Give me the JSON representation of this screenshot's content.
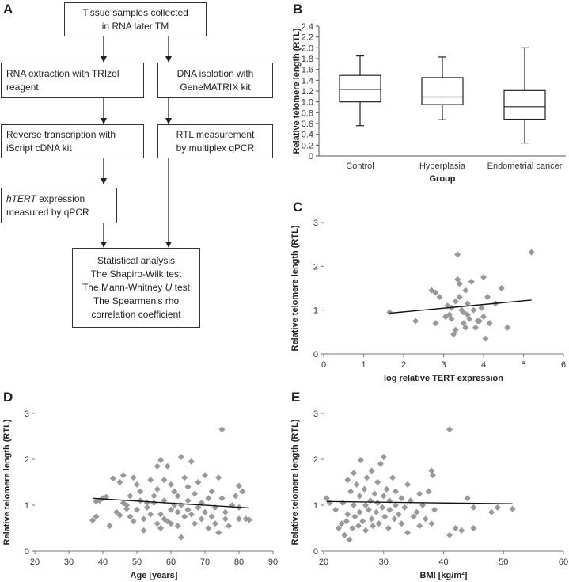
{
  "panel_letters": {
    "a": "A",
    "b": "B",
    "c": "C",
    "d": "D",
    "e": "E"
  },
  "flowchart": {
    "tissue": [
      "Tissue samples collected",
      "in RNA later TM"
    ],
    "rna_extraction": [
      "RNA extraction with TRIzol",
      "reagent"
    ],
    "dna_isolation": [
      "DNA isolation with",
      "GeneMATRIX kit"
    ],
    "reverse_transcription": [
      "Reverse transcription with",
      "iScript cDNA kit"
    ],
    "rtl_measurement": [
      "RTL measurement",
      "by multiplex qPCR"
    ],
    "htert_italic": "hTERT",
    "htert_rest": " expression",
    "htert_line2": "measured by qPCR",
    "stats": {
      "line1": "Statistical analysis",
      "line2": "The Shapiro-Wilk test",
      "line3_pre": "The Mann-Whitney ",
      "line3_italic": "U",
      "line3_post": " test",
      "line4": "The Spearmen's rho",
      "line5": "correlation coefficient"
    },
    "arrow_color": "#222222"
  },
  "chart_data": [
    {
      "id": "B",
      "type": "box",
      "categories": [
        "Control",
        "Hyperplasia",
        "Endometrial cancer"
      ],
      "boxes": [
        {
          "min": 0.56,
          "q1": 1.0,
          "median": 1.23,
          "q3": 1.49,
          "max": 1.85
        },
        {
          "min": 0.67,
          "q1": 0.95,
          "median": 1.09,
          "q3": 1.45,
          "max": 1.83
        },
        {
          "min": 0.24,
          "q1": 0.68,
          "median": 0.91,
          "q3": 1.21,
          "max": 2.0
        }
      ],
      "ylabel": "Relative telomere length (RTL)",
      "xlabel": "Group",
      "ylim": [
        0,
        2.4
      ],
      "yticks": [
        "0",
        "0.2",
        "0.4",
        "0.6",
        "0.8",
        "1.0",
        "1.2",
        "1.4",
        "1.6",
        "1.8",
        "2.0",
        "2.2",
        "2.4"
      ]
    },
    {
      "id": "C",
      "type": "scatter",
      "xlabel": "log relative TERT expression",
      "ylabel": "Relative telomere length (RTL)",
      "xlim": [
        0,
        6
      ],
      "ylim": [
        0,
        3
      ],
      "xticks": [
        "0",
        "1",
        "2",
        "3",
        "4",
        "5",
        "6"
      ],
      "yticks": [
        "0",
        "1",
        "2",
        "3"
      ],
      "marker_color": "#999999",
      "points": [
        [
          1.65,
          0.95
        ],
        [
          2.3,
          0.75
        ],
        [
          2.7,
          1.45
        ],
        [
          2.8,
          1.4
        ],
        [
          2.8,
          0.7
        ],
        [
          2.9,
          1.3
        ],
        [
          3.05,
          0.85
        ],
        [
          3.1,
          1.1
        ],
        [
          3.15,
          0.9
        ],
        [
          3.2,
          1.05
        ],
        [
          3.2,
          0.8
        ],
        [
          3.25,
          0.45
        ],
        [
          3.3,
          1.2
        ],
        [
          3.3,
          0.55
        ],
        [
          3.35,
          2.27
        ],
        [
          3.35,
          1.7
        ],
        [
          3.4,
          1.6
        ],
        [
          3.4,
          1.3
        ],
        [
          3.45,
          1.0
        ],
        [
          3.5,
          0.95
        ],
        [
          3.5,
          0.7
        ],
        [
          3.55,
          1.45
        ],
        [
          3.55,
          0.6
        ],
        [
          3.6,
          1.15
        ],
        [
          3.6,
          0.9
        ],
        [
          3.65,
          0.8
        ],
        [
          3.7,
          1.65
        ],
        [
          3.75,
          1.0
        ],
        [
          3.8,
          0.6
        ],
        [
          3.85,
          0.75
        ],
        [
          3.9,
          0.75
        ],
        [
          3.95,
          1.05
        ],
        [
          4.0,
          1.75
        ],
        [
          4.0,
          0.85
        ],
        [
          4.05,
          0.35
        ],
        [
          4.1,
          1.3
        ],
        [
          4.15,
          0.7
        ],
        [
          4.3,
          1.15
        ],
        [
          4.45,
          1.5
        ],
        [
          4.6,
          0.6
        ],
        [
          5.2,
          2.32
        ]
      ],
      "trend": {
        "x": [
          1.65,
          5.2
        ],
        "y": [
          0.93,
          1.23
        ]
      }
    },
    {
      "id": "D",
      "type": "scatter",
      "xlabel": "Age [years]",
      "ylabel": "Relative telomere length (RTL)",
      "xlim": [
        20,
        90
      ],
      "ylim": [
        0,
        3
      ],
      "xticks": [
        "20",
        "30",
        "40",
        "50",
        "60",
        "70",
        "80",
        "90"
      ],
      "yticks": [
        "0",
        "1",
        "2",
        "3"
      ],
      "marker_color": "#999999",
      "points": [
        [
          37,
          0.67
        ],
        [
          38,
          0.75
        ],
        [
          38,
          1.08
        ],
        [
          39,
          1.1
        ],
        [
          40,
          1.15
        ],
        [
          41,
          1.18
        ],
        [
          42,
          0.55
        ],
        [
          43,
          1.58
        ],
        [
          44,
          0.85
        ],
        [
          45,
          1.5
        ],
        [
          45,
          0.78
        ],
        [
          46,
          1.05
        ],
        [
          46,
          1.65
        ],
        [
          47,
          1.0
        ],
        [
          47,
          0.92
        ],
        [
          48,
          0.75
        ],
        [
          48,
          1.2
        ],
        [
          49,
          1.6
        ],
        [
          49,
          0.65
        ],
        [
          50,
          0.9
        ],
        [
          50,
          1.45
        ],
        [
          51,
          1.3
        ],
        [
          51,
          1.1
        ],
        [
          52,
          0.7
        ],
        [
          52,
          0.45
        ],
        [
          53,
          1.05
        ],
        [
          53,
          0.95
        ],
        [
          54,
          1.55
        ],
        [
          54,
          0.8
        ],
        [
          55,
          1.2
        ],
        [
          55,
          1.05
        ],
        [
          56,
          1.85
        ],
        [
          56,
          0.6
        ],
        [
          56,
          1.35
        ],
        [
          57,
          1.98
        ],
        [
          57,
          0.8
        ],
        [
          57,
          0.5
        ],
        [
          58,
          1.1
        ],
        [
          58,
          1.55
        ],
        [
          58,
          0.7
        ],
        [
          59,
          1.85
        ],
        [
          59,
          0.65
        ],
        [
          60,
          1.45
        ],
        [
          60,
          0.9
        ],
        [
          60,
          0.6
        ],
        [
          61,
          1.0
        ],
        [
          61,
          1.3
        ],
        [
          62,
          0.85
        ],
        [
          62,
          1.2
        ],
        [
          62,
          0.55
        ],
        [
          63,
          2.05
        ],
        [
          63,
          0.3
        ],
        [
          63,
          1.0
        ],
        [
          64,
          1.6
        ],
        [
          64,
          0.75
        ],
        [
          65,
          1.1
        ],
        [
          65,
          0.9
        ],
        [
          65,
          1.4
        ],
        [
          66,
          0.8
        ],
        [
          66,
          1.95
        ],
        [
          67,
          1.25
        ],
        [
          67,
          0.6
        ],
        [
          68,
          0.95
        ],
        [
          68,
          1.5
        ],
        [
          69,
          1.05
        ],
        [
          69,
          0.7
        ],
        [
          70,
          1.65
        ],
        [
          70,
          0.85
        ],
        [
          71,
          1.15
        ],
        [
          71,
          0.5
        ],
        [
          72,
          1.3
        ],
        [
          72,
          0.75
        ],
        [
          73,
          0.95
        ],
        [
          73,
          0.6
        ],
        [
          74,
          1.6
        ],
        [
          74,
          0.4
        ],
        [
          75,
          2.65
        ],
        [
          75,
          1.15
        ],
        [
          76,
          0.85
        ],
        [
          76,
          0.7
        ],
        [
          77,
          0.55
        ],
        [
          78,
          1.0
        ],
        [
          79,
          1.2
        ],
        [
          80,
          1.42
        ],
        [
          80,
          0.95
        ],
        [
          80,
          0.7
        ],
        [
          81,
          1.3
        ],
        [
          82,
          0.7
        ],
        [
          83,
          0.68
        ]
      ],
      "trend": {
        "x": [
          37,
          83
        ],
        "y": [
          1.15,
          0.94
        ]
      }
    },
    {
      "id": "E",
      "type": "scatter",
      "xlabel": "BMI [kg/m²]",
      "ylabel": "Relative telomere length (RTL)",
      "xlim": [
        20,
        60
      ],
      "ylim": [
        0,
        3
      ],
      "xticks": [
        "20",
        "30",
        "40",
        "50",
        "60"
      ],
      "yticks": [
        "0",
        "1",
        "2",
        "3"
      ],
      "marker_color": "#999999",
      "points": [
        [
          20.5,
          1.15
        ],
        [
          21,
          1.05
        ],
        [
          22,
          0.9
        ],
        [
          22.5,
          0.5
        ],
        [
          23,
          0.6
        ],
        [
          23.2,
          1.05
        ],
        [
          23.5,
          0.35
        ],
        [
          23.8,
          0.65
        ],
        [
          24,
          1.55
        ],
        [
          24,
          0.8
        ],
        [
          24.3,
          0.25
        ],
        [
          24.5,
          1.3
        ],
        [
          24.8,
          0.5
        ],
        [
          25,
          1.0
        ],
        [
          25,
          1.7
        ],
        [
          25.2,
          0.75
        ],
        [
          25.5,
          1.45
        ],
        [
          25.8,
          0.55
        ],
        [
          26,
          1.2
        ],
        [
          26,
          0.85
        ],
        [
          26.2,
          1.98
        ],
        [
          26.5,
          0.65
        ],
        [
          26.8,
          1.35
        ],
        [
          27,
          1.0
        ],
        [
          27,
          0.45
        ],
        [
          27.2,
          1.6
        ],
        [
          27.5,
          0.9
        ],
        [
          27.8,
          1.1
        ],
        [
          28,
          1.75
        ],
        [
          28,
          0.7
        ],
        [
          28.2,
          0.55
        ],
        [
          28.5,
          1.25
        ],
        [
          28.8,
          0.85
        ],
        [
          29,
          1.05
        ],
        [
          29,
          1.5
        ],
        [
          29.2,
          0.6
        ],
        [
          29.5,
          1.9
        ],
        [
          29.8,
          0.95
        ],
        [
          30,
          2.05
        ],
        [
          30,
          1.2
        ],
        [
          30.2,
          0.75
        ],
        [
          30.5,
          1.35
        ],
        [
          30.8,
          0.5
        ],
        [
          31,
          1.1
        ],
        [
          31,
          0.9
        ],
        [
          31.5,
          1.6
        ],
        [
          31.8,
          0.7
        ],
        [
          32,
          1.0
        ],
        [
          32,
          1.3
        ],
        [
          32.5,
          0.8
        ],
        [
          33,
          1.15
        ],
        [
          33,
          0.6
        ],
        [
          33.5,
          0.95
        ],
        [
          34,
          1.45
        ],
        [
          34,
          0.4
        ],
        [
          34.5,
          1.1
        ],
        [
          35,
          0.75
        ],
        [
          35.5,
          0.85
        ],
        [
          36,
          1.25
        ],
        [
          36,
          0.55
        ],
        [
          36.5,
          1.0
        ],
        [
          37,
          0.7
        ],
        [
          37.5,
          1.3
        ],
        [
          38,
          1.75
        ],
        [
          38,
          0.6
        ],
        [
          38.2,
          1.65
        ],
        [
          38.5,
          0.9
        ],
        [
          41,
          2.65
        ],
        [
          41,
          0.35
        ],
        [
          42,
          0.5
        ],
        [
          43,
          0.45
        ],
        [
          44,
          1.15
        ],
        [
          45,
          0.95
        ],
        [
          45,
          0.5
        ],
        [
          48,
          0.85
        ],
        [
          49,
          0.95
        ],
        [
          51.5,
          0.92
        ]
      ],
      "trend": {
        "x": [
          20.5,
          51.5
        ],
        "y": [
          1.08,
          1.03
        ]
      }
    }
  ]
}
